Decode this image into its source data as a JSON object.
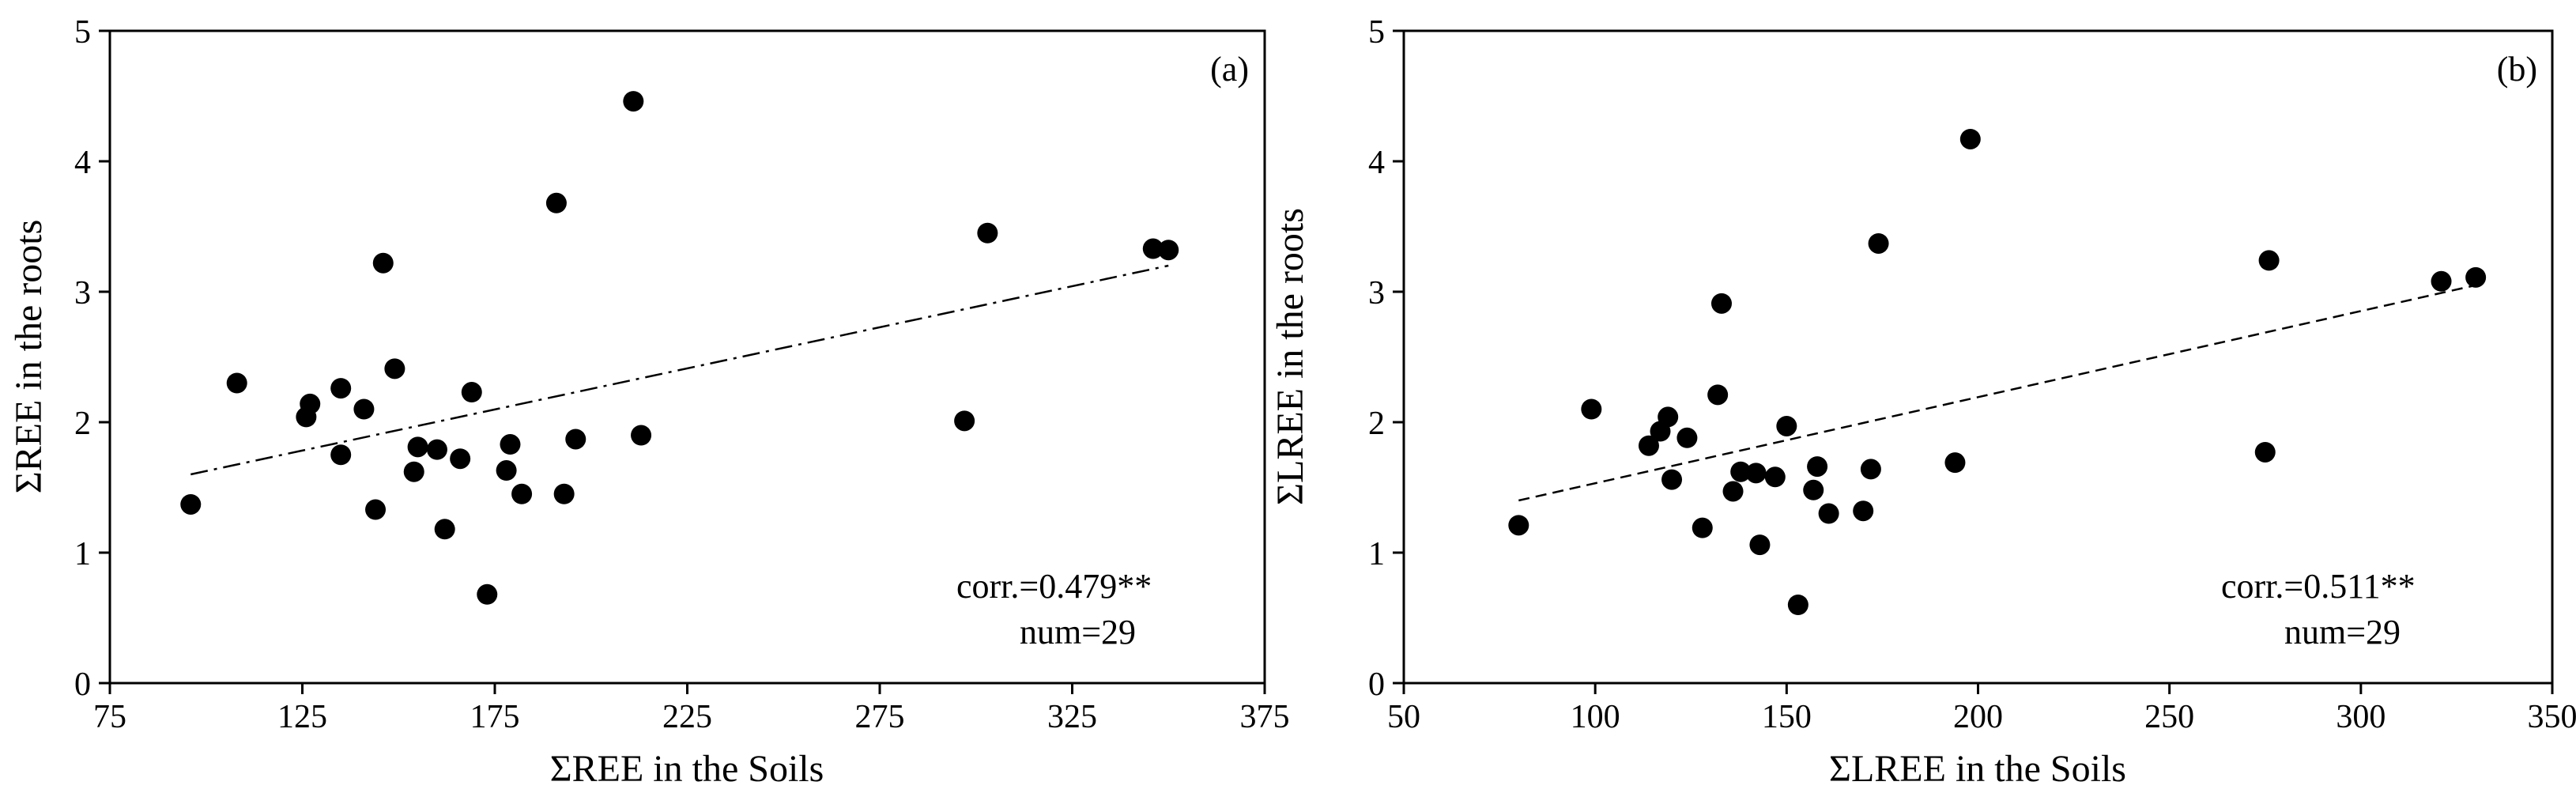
{
  "chart_data": [
    {
      "type": "scatter",
      "panel_label": "(a)",
      "xlabel": "ΣREE in the Soils",
      "ylabel": "ΣREE in the roots",
      "xlim": [
        75,
        375
      ],
      "ylim": [
        0,
        5
      ],
      "xticks": [
        75,
        125,
        175,
        225,
        275,
        325,
        375
      ],
      "yticks": [
        0,
        1,
        2,
        3,
        4,
        5
      ],
      "annotations": [
        "corr.=0.479**",
        "num=29"
      ],
      "trendline": {
        "style": "dash-dot",
        "x": [
          96,
          350
        ],
        "y": [
          1.6,
          3.2
        ]
      },
      "points": [
        {
          "x": 96,
          "y": 1.37
        },
        {
          "x": 108,
          "y": 2.3
        },
        {
          "x": 127,
          "y": 2.14
        },
        {
          "x": 126,
          "y": 2.04
        },
        {
          "x": 135,
          "y": 2.26
        },
        {
          "x": 135,
          "y": 1.75
        },
        {
          "x": 141,
          "y": 2.1
        },
        {
          "x": 144,
          "y": 1.33
        },
        {
          "x": 146,
          "y": 3.22
        },
        {
          "x": 149,
          "y": 2.41
        },
        {
          "x": 154,
          "y": 1.62
        },
        {
          "x": 155,
          "y": 1.81
        },
        {
          "x": 160,
          "y": 1.79
        },
        {
          "x": 162,
          "y": 1.18
        },
        {
          "x": 166,
          "y": 1.72
        },
        {
          "x": 169,
          "y": 2.23
        },
        {
          "x": 173,
          "y": 0.68
        },
        {
          "x": 178,
          "y": 1.63
        },
        {
          "x": 179,
          "y": 1.83
        },
        {
          "x": 182,
          "y": 1.45
        },
        {
          "x": 191,
          "y": 3.68
        },
        {
          "x": 193,
          "y": 1.45
        },
        {
          "x": 196,
          "y": 1.87
        },
        {
          "x": 211,
          "y": 4.46
        },
        {
          "x": 213,
          "y": 1.9
        },
        {
          "x": 297,
          "y": 2.01
        },
        {
          "x": 303,
          "y": 3.45
        },
        {
          "x": 346,
          "y": 3.33
        },
        {
          "x": 350,
          "y": 3.32
        }
      ]
    },
    {
      "type": "scatter",
      "panel_label": "(b)",
      "xlabel": "ΣLREE in the Soils",
      "ylabel": "ΣLREE in the roots",
      "xlim": [
        50,
        350
      ],
      "ylim": [
        0,
        5
      ],
      "xticks": [
        50,
        100,
        150,
        200,
        250,
        300,
        350
      ],
      "yticks": [
        0,
        1,
        2,
        3,
        4,
        5
      ],
      "annotations": [
        "corr.=0.511**",
        "num=29"
      ],
      "trendline": {
        "style": "dashed",
        "x": [
          80,
          330
        ],
        "y": [
          1.4,
          3.05
        ]
      },
      "points": [
        {
          "x": 80,
          "y": 1.21
        },
        {
          "x": 99,
          "y": 2.1
        },
        {
          "x": 114,
          "y": 1.82
        },
        {
          "x": 117,
          "y": 1.93
        },
        {
          "x": 119,
          "y": 2.04
        },
        {
          "x": 120,
          "y": 1.56
        },
        {
          "x": 124,
          "y": 1.88
        },
        {
          "x": 128,
          "y": 1.19
        },
        {
          "x": 132,
          "y": 2.21
        },
        {
          "x": 133,
          "y": 2.91
        },
        {
          "x": 136,
          "y": 1.47
        },
        {
          "x": 138,
          "y": 1.62
        },
        {
          "x": 142,
          "y": 1.61
        },
        {
          "x": 143,
          "y": 1.06
        },
        {
          "x": 147,
          "y": 1.58
        },
        {
          "x": 150,
          "y": 1.97
        },
        {
          "x": 153,
          "y": 0.6
        },
        {
          "x": 157,
          "y": 1.48
        },
        {
          "x": 158,
          "y": 1.66
        },
        {
          "x": 161,
          "y": 1.3
        },
        {
          "x": 170,
          "y": 1.32
        },
        {
          "x": 172,
          "y": 1.64
        },
        {
          "x": 174,
          "y": 3.37
        },
        {
          "x": 194,
          "y": 1.69
        },
        {
          "x": 198,
          "y": 4.17
        },
        {
          "x": 275,
          "y": 1.77
        },
        {
          "x": 276,
          "y": 3.24
        },
        {
          "x": 321,
          "y": 3.08
        },
        {
          "x": 330,
          "y": 3.11
        }
      ]
    }
  ]
}
